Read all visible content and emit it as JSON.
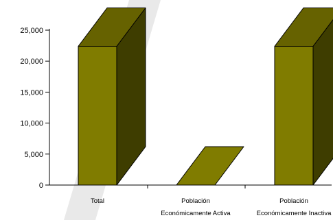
{
  "chart_data": {
    "type": "bar",
    "style": "3d-column",
    "categories": [
      [
        "Total"
      ],
      [
        "Población",
        "Económicamente Activa"
      ],
      [
        "Población",
        "Económicamente Inactiva"
      ]
    ],
    "values": [
      22400,
      0,
      22400
    ],
    "ylim": [
      0,
      25000
    ],
    "yticks": [
      {
        "value": 0,
        "label": "0"
      },
      {
        "value": 5000,
        "label": "5,000"
      },
      {
        "value": 10000,
        "label": "10,000"
      },
      {
        "value": 15000,
        "label": "15,000"
      },
      {
        "value": 20000,
        "label": "20,000"
      },
      {
        "value": 25000,
        "label": "25,000"
      }
    ],
    "grid": false,
    "legend": "none",
    "colors": {
      "bar_front": "#807c00",
      "bar_top": "#666200",
      "bar_side": "#3e3d00",
      "edge": "#000000",
      "axis": "#000000",
      "watermark": "#e9e9e9"
    }
  }
}
